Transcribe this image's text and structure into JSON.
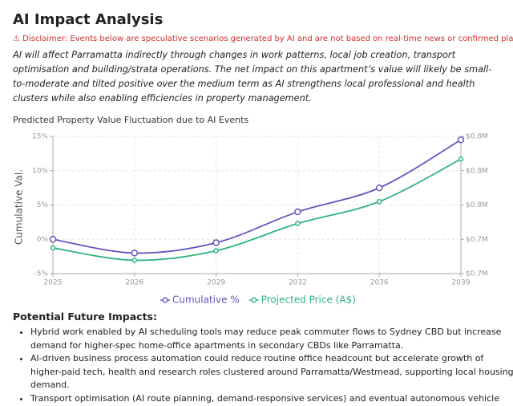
{
  "header": {
    "title": "AI Impact Analysis",
    "disclaimer": "⚠ Disclaimer: Events below are speculative scenarios generated by AI and are not based on real-time news or confirmed plans.",
    "summary": "AI will affect Parramatta indirectly through changes in work patterns, local job creation, transport optimisation and building/strata operations. The net impact on this apartment’s value will likely be small-to-moderate and tilted positive over the medium term as AI strengthens local professional and health clusters while also enabling efficiencies in property management."
  },
  "chart_data": {
    "type": "line",
    "title": "Predicted Property Value Fluctuation due to AI Events",
    "y_label": "Cumulative Val.",
    "categories": [
      "2025",
      "2026",
      "2029",
      "2032",
      "2036",
      "2039"
    ],
    "series": [
      {
        "name": "Cumulative %",
        "color": "#6554c0",
        "values": [
          0,
          -2,
          -0.5,
          4,
          7.5,
          14.5
        ]
      },
      {
        "name": "Projected Price (A$)",
        "color": "#2fb380",
        "axis": "y2",
        "values": [
          711000,
          698000,
          708000,
          736600,
          759600,
          804200
        ]
      }
    ],
    "ylim": [
      -5,
      15
    ],
    "yticks": [
      {
        "value": -5,
        "label": "-5%"
      },
      {
        "value": 0,
        "label": "0%"
      },
      {
        "value": 5,
        "label": "5%"
      },
      {
        "value": 10,
        "label": "10%"
      },
      {
        "value": 15,
        "label": "15%"
      }
    ],
    "y2lim": [
      684000,
      828000
    ],
    "y2ticks": [
      {
        "value": 684000,
        "label": "$0.7M"
      },
      {
        "value": 720000,
        "label": "$0.7M"
      },
      {
        "value": 756000,
        "label": "$0.8M"
      },
      {
        "value": 792000,
        "label": "$0.8M"
      },
      {
        "value": 828000,
        "label": "$0.8M"
      }
    ],
    "grid": true,
    "legend": "bottom"
  },
  "impacts": {
    "title": "Potential Future Impacts:",
    "items": [
      "Hybrid work enabled by AI scheduling tools may reduce peak commuter flows to Sydney CBD but increase demand for higher-spec home-office apartments in secondary CBDs like Parramatta.",
      "AI-driven business process automation could reduce routine office headcount but accelerate growth of higher-paid tech, health and research roles clustered around Parramatta/Westmead, supporting local housing demand.",
      "Transport optimisation (AI route planning, demand-responsive services) and eventual autonomous vehicle pilots could improve local accessibility and micro-mobility, making inner-Parramatta living more attractive."
    ]
  }
}
